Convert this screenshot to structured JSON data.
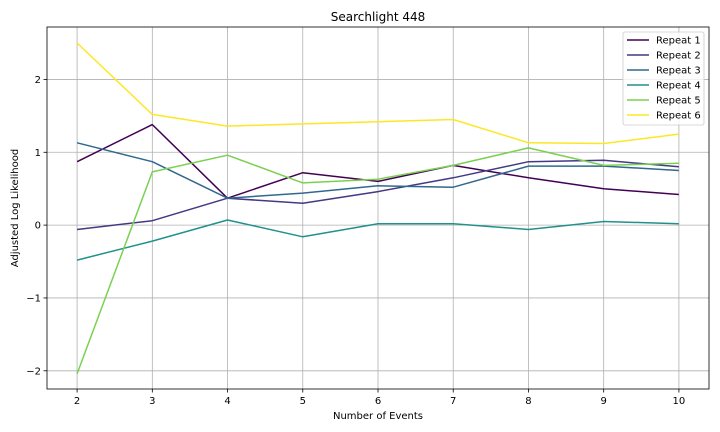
{
  "chart_data": {
    "type": "line",
    "title": "Searchlight 448",
    "xlabel": "Number of Events",
    "ylabel": "Adjusted Log Likelihood",
    "x": [
      2,
      3,
      4,
      5,
      6,
      7,
      8,
      9,
      10
    ],
    "xlim": [
      1.6,
      10.4
    ],
    "ylim": [
      -2.25,
      2.72
    ],
    "xticks": [
      2,
      3,
      4,
      5,
      6,
      7,
      8,
      9,
      10
    ],
    "yticks": [
      -2,
      -1,
      0,
      1,
      2
    ],
    "ytick_labels": [
      "−2",
      "−1",
      "0",
      "1",
      "2"
    ],
    "grid": true,
    "legend_position": "top-right",
    "series": [
      {
        "name": "Repeat 1",
        "color": "#440154",
        "values": [
          0.87,
          1.38,
          0.37,
          0.72,
          0.6,
          0.82,
          0.65,
          0.5,
          0.42
        ]
      },
      {
        "name": "Repeat 2",
        "color": "#443983",
        "values": [
          -0.06,
          0.06,
          0.37,
          0.3,
          0.46,
          0.65,
          0.87,
          0.89,
          0.8
        ]
      },
      {
        "name": "Repeat 3",
        "color": "#31688e",
        "values": [
          1.13,
          0.87,
          0.37,
          0.44,
          0.54,
          0.52,
          0.81,
          0.81,
          0.75
        ]
      },
      {
        "name": "Repeat 4",
        "color": "#21918c",
        "values": [
          -0.48,
          -0.22,
          0.07,
          -0.16,
          0.02,
          0.02,
          -0.06,
          0.05,
          0.02
        ]
      },
      {
        "name": "Repeat 5",
        "color": "#7ad151",
        "values": [
          -2.04,
          0.73,
          0.96,
          0.58,
          0.63,
          0.82,
          1.06,
          0.82,
          0.85
        ]
      },
      {
        "name": "Repeat 6",
        "color": "#fde725",
        "values": [
          2.5,
          1.52,
          1.36,
          1.39,
          1.42,
          1.45,
          1.13,
          1.12,
          1.25
        ]
      }
    ]
  }
}
